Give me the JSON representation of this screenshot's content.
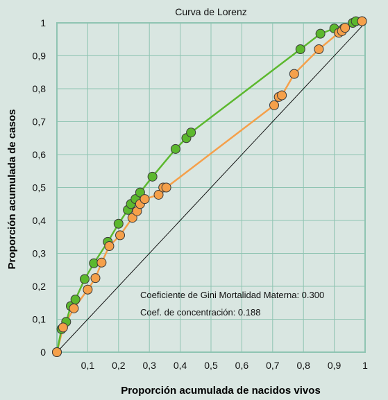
{
  "chart_data": {
    "type": "line",
    "title": "Curva de Lorenz",
    "xlabel": "Proporción acumulada de nacidos vivos",
    "ylabel": "Proporción acumulada de casos",
    "xlim": [
      0,
      1
    ],
    "ylim": [
      0,
      1
    ],
    "x_ticks": [
      "0,1",
      "0,2",
      "0,3",
      "0,4",
      "0,5",
      "0,6",
      "0,7",
      "0,8",
      "0,9",
      "1"
    ],
    "y_ticks": [
      "0",
      "0,1",
      "0,2",
      "0,3",
      "0,4",
      "0,5",
      "0,6",
      "0,7",
      "0,8",
      "0,9",
      "1"
    ],
    "grid": true,
    "annotations": [
      "Coeficiente de Gini Mortalidad Materna: 0.300",
      "Coef. de concentración: 0.188"
    ],
    "colors": {
      "green": "#5cb82e",
      "orange": "#f5a04a",
      "grid": "#8fc4b2",
      "background": "#d9e6e1"
    },
    "series": [
      {
        "color": "green",
        "x": [
          0,
          0.015,
          0.03,
          0.045,
          0.06,
          0.09,
          0.12,
          0.165,
          0.2,
          0.23,
          0.24,
          0.255,
          0.27,
          0.31,
          0.385,
          0.42,
          0.435,
          0.79,
          0.855,
          0.9,
          0.93,
          0.96,
          0.97,
          0.99
        ],
        "y": [
          0,
          0.07,
          0.092,
          0.14,
          0.16,
          0.222,
          0.27,
          0.335,
          0.39,
          0.432,
          0.45,
          0.465,
          0.485,
          0.533,
          0.617,
          0.65,
          0.667,
          0.92,
          0.967,
          0.983,
          0.983,
          1.0,
          1.005,
          1.005
        ]
      },
      {
        "color": "orange",
        "x": [
          0,
          0.02,
          0.055,
          0.1,
          0.125,
          0.145,
          0.17,
          0.205,
          0.245,
          0.26,
          0.27,
          0.285,
          0.33,
          0.345,
          0.355,
          0.705,
          0.72,
          0.73,
          0.77,
          0.85,
          0.915,
          0.925,
          0.935,
          0.99
        ],
        "y": [
          0,
          0.075,
          0.133,
          0.19,
          0.225,
          0.272,
          0.322,
          0.355,
          0.408,
          0.428,
          0.45,
          0.465,
          0.478,
          0.5,
          0.5,
          0.75,
          0.775,
          0.78,
          0.845,
          0.92,
          0.97,
          0.975,
          0.985,
          1.005
        ]
      },
      {
        "color": "black",
        "x": [
          0,
          1
        ],
        "y": [
          0,
          1
        ]
      }
    ]
  }
}
